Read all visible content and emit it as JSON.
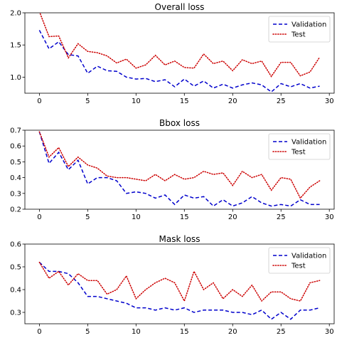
{
  "chart_data": [
    {
      "type": "line",
      "title": "Overall loss",
      "xlim": [
        -1.5,
        30.5
      ],
      "ylim": [
        0.75,
        2.0
      ],
      "xticks": [
        0,
        5,
        10,
        15,
        20,
        25,
        30
      ],
      "yticks": [
        1.0,
        1.5,
        2.0
      ],
      "ytick_labels": [
        "1.0",
        "1.5",
        "2.0"
      ],
      "legend": "top-right",
      "series": [
        {
          "name": "Validation",
          "color": "#0000cc",
          "style": "dashed",
          "x": [
            0,
            1,
            2,
            3,
            4,
            5,
            6,
            7,
            8,
            9,
            10,
            11,
            12,
            13,
            14,
            15,
            16,
            17,
            18,
            19,
            20,
            21,
            22,
            23,
            24,
            25,
            26,
            27,
            28,
            29
          ],
          "values": [
            1.73,
            1.44,
            1.55,
            1.35,
            1.33,
            1.06,
            1.17,
            1.1,
            1.09,
            1.0,
            0.97,
            0.98,
            0.93,
            0.96,
            0.85,
            0.97,
            0.86,
            0.94,
            0.83,
            0.89,
            0.83,
            0.88,
            0.91,
            0.88,
            0.77,
            0.9,
            0.85,
            0.9,
            0.83,
            0.86
          ]
        },
        {
          "name": "Test",
          "color": "#cc0000",
          "style": "dotted",
          "x": [
            0,
            1,
            2,
            3,
            4,
            5,
            6,
            7,
            8,
            9,
            10,
            11,
            12,
            13,
            14,
            15,
            16,
            17,
            18,
            19,
            20,
            21,
            22,
            23,
            24,
            25,
            26,
            27,
            28,
            29
          ],
          "values": [
            2.02,
            1.63,
            1.64,
            1.3,
            1.52,
            1.4,
            1.38,
            1.33,
            1.22,
            1.28,
            1.14,
            1.19,
            1.34,
            1.19,
            1.25,
            1.15,
            1.14,
            1.36,
            1.21,
            1.25,
            1.1,
            1.27,
            1.21,
            1.25,
            1.01,
            1.23,
            1.23,
            1.02,
            1.08,
            1.31
          ]
        }
      ]
    },
    {
      "type": "line",
      "title": "Bbox loss",
      "xlim": [
        -1.5,
        30.5
      ],
      "ylim": [
        0.2,
        0.7
      ],
      "xticks": [
        0,
        5,
        10,
        15,
        20,
        25,
        30
      ],
      "yticks": [
        0.2,
        0.3,
        0.4,
        0.5,
        0.6,
        0.7
      ],
      "ytick_labels": [
        "0.2",
        "0.3",
        "0.4",
        "0.5",
        "0.6",
        "0.7"
      ],
      "legend": "top-right",
      "series": [
        {
          "name": "Validation",
          "color": "#0000cc",
          "style": "dashed",
          "x": [
            0,
            1,
            2,
            3,
            4,
            5,
            6,
            7,
            8,
            9,
            10,
            11,
            12,
            13,
            14,
            15,
            16,
            17,
            18,
            19,
            20,
            21,
            22,
            23,
            24,
            25,
            26,
            27,
            28,
            29
          ],
          "values": [
            0.69,
            0.49,
            0.56,
            0.45,
            0.51,
            0.36,
            0.4,
            0.4,
            0.38,
            0.3,
            0.31,
            0.3,
            0.27,
            0.29,
            0.23,
            0.29,
            0.27,
            0.28,
            0.22,
            0.26,
            0.22,
            0.24,
            0.28,
            0.24,
            0.22,
            0.23,
            0.22,
            0.26,
            0.23,
            0.23
          ]
        },
        {
          "name": "Test",
          "color": "#cc0000",
          "style": "dotted",
          "x": [
            0,
            1,
            2,
            3,
            4,
            5,
            6,
            7,
            8,
            9,
            10,
            11,
            12,
            13,
            14,
            15,
            16,
            17,
            18,
            19,
            20,
            21,
            22,
            23,
            24,
            25,
            26,
            27,
            28,
            29
          ],
          "values": [
            0.69,
            0.53,
            0.59,
            0.47,
            0.53,
            0.48,
            0.46,
            0.41,
            0.4,
            0.4,
            0.39,
            0.38,
            0.42,
            0.38,
            0.42,
            0.39,
            0.4,
            0.44,
            0.42,
            0.43,
            0.35,
            0.44,
            0.4,
            0.42,
            0.32,
            0.4,
            0.39,
            0.27,
            0.34,
            0.38
          ]
        }
      ]
    },
    {
      "type": "line",
      "title": "Mask loss",
      "xlim": [
        -1.5,
        30.5
      ],
      "ylim": [
        0.25,
        0.6
      ],
      "xticks": [
        0,
        5,
        10,
        15,
        20,
        25,
        30
      ],
      "yticks": [
        0.3,
        0.4,
        0.5,
        0.6
      ],
      "ytick_labels": [
        "0.3",
        "0.4",
        "0.5",
        "0.6"
      ],
      "legend": "top-right",
      "series": [
        {
          "name": "Validation",
          "color": "#0000cc",
          "style": "dashed",
          "x": [
            0,
            1,
            2,
            3,
            4,
            5,
            6,
            7,
            8,
            9,
            10,
            11,
            12,
            13,
            14,
            15,
            16,
            17,
            18,
            19,
            20,
            21,
            22,
            23,
            24,
            25,
            26,
            27,
            28,
            29
          ],
          "values": [
            0.52,
            0.48,
            0.48,
            0.47,
            0.43,
            0.37,
            0.37,
            0.36,
            0.35,
            0.34,
            0.32,
            0.32,
            0.31,
            0.32,
            0.31,
            0.32,
            0.3,
            0.31,
            0.31,
            0.31,
            0.3,
            0.3,
            0.29,
            0.31,
            0.27,
            0.3,
            0.27,
            0.31,
            0.31,
            0.32
          ]
        },
        {
          "name": "Test",
          "color": "#cc0000",
          "style": "dotted",
          "x": [
            0,
            1,
            2,
            3,
            4,
            5,
            6,
            7,
            8,
            9,
            10,
            11,
            12,
            13,
            14,
            15,
            16,
            17,
            18,
            19,
            20,
            21,
            22,
            23,
            24,
            25,
            26,
            27,
            28,
            29
          ],
          "values": [
            0.52,
            0.45,
            0.48,
            0.42,
            0.47,
            0.44,
            0.44,
            0.38,
            0.4,
            0.46,
            0.36,
            0.4,
            0.43,
            0.45,
            0.43,
            0.35,
            0.48,
            0.4,
            0.43,
            0.36,
            0.4,
            0.37,
            0.42,
            0.35,
            0.39,
            0.39,
            0.36,
            0.35,
            0.43,
            0.44
          ]
        }
      ]
    }
  ]
}
